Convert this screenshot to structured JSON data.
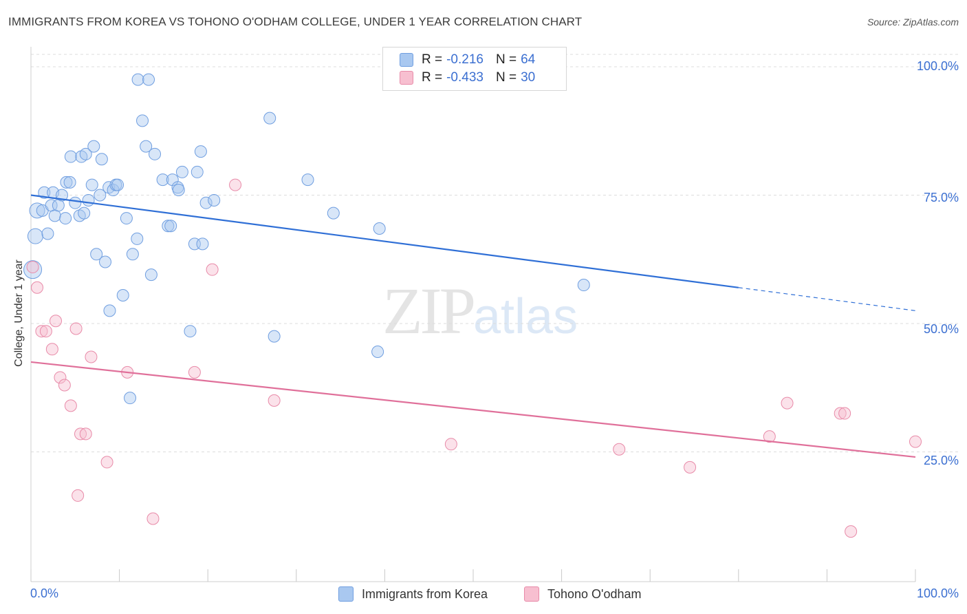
{
  "title": "IMMIGRANTS FROM KOREA VS TOHONO O'ODHAM COLLEGE, UNDER 1 YEAR CORRELATION CHART",
  "source": "Source: ZipAtlas.com",
  "watermark": {
    "part1": "ZIP",
    "part2": "atlas"
  },
  "legend": {
    "rows": [
      {
        "r_label": "R =",
        "r_value": "-0.216",
        "n_label": "N =",
        "n_value": "64",
        "color": "#a9c8f0",
        "border": "#6f9ee0"
      },
      {
        "r_label": "R =",
        "r_value": "-0.433",
        "n_label": "N =",
        "n_value": "30",
        "color": "#f7bfd0",
        "border": "#e88aa8"
      }
    ]
  },
  "bottom_legend": {
    "series1": "Immigrants from Korea",
    "series2": "Tohono O'odham"
  },
  "axes": {
    "ylabel": "College, Under 1 year",
    "yticks": [
      "100.0%",
      "75.0%",
      "50.0%",
      "25.0%"
    ],
    "xtick_left": "0.0%",
    "xtick_right": "100.0%"
  },
  "chart_data": {
    "type": "scatter",
    "title": "IMMIGRANTS FROM KOREA VS TOHONO O'ODHAM COLLEGE, UNDER 1 YEAR CORRELATION CHART",
    "xlabel": "",
    "ylabel": "College, Under 1 year",
    "xlim": [
      0,
      100
    ],
    "ylim": [
      0,
      100
    ],
    "grid": true,
    "legend_position": "top-center",
    "series": [
      {
        "name": "Immigrants from Korea",
        "color": "#a9c8f0",
        "edge": "#6f9ee0",
        "trend": {
          "x0": 0,
          "y0": 75.0,
          "x1": 80,
          "y1": 57.0,
          "dash_to": 100,
          "dash_y": 52.5,
          "color": "#2f6fd6"
        },
        "points": [
          [
            0.2,
            60.5,
            3
          ],
          [
            0.5,
            67,
            2
          ],
          [
            0.7,
            72,
            2
          ],
          [
            1.3,
            72,
            1
          ],
          [
            1.5,
            75.5,
            1
          ],
          [
            1.9,
            67.5,
            1
          ],
          [
            2.3,
            73,
            1
          ],
          [
            2.5,
            75.5,
            1
          ],
          [
            2.7,
            71,
            1
          ],
          [
            3.1,
            73,
            1
          ],
          [
            3.5,
            75,
            1
          ],
          [
            3.9,
            70.5,
            1
          ],
          [
            4.0,
            77.5,
            1
          ],
          [
            4.4,
            77.5,
            1
          ],
          [
            4.5,
            82.5,
            1
          ],
          [
            5.0,
            73.5,
            1
          ],
          [
            5.5,
            71,
            1
          ],
          [
            5.7,
            82.5,
            1
          ],
          [
            6.0,
            71.5,
            1
          ],
          [
            6.2,
            83,
            1
          ],
          [
            6.5,
            74,
            1
          ],
          [
            6.9,
            77,
            1
          ],
          [
            7.1,
            84.5,
            1
          ],
          [
            7.4,
            63.5,
            1
          ],
          [
            7.8,
            75,
            1
          ],
          [
            8.0,
            82,
            1
          ],
          [
            8.4,
            62,
            1
          ],
          [
            8.8,
            76.5,
            1
          ],
          [
            8.9,
            52.5,
            1
          ],
          [
            9.3,
            76,
            1
          ],
          [
            9.6,
            77,
            1
          ],
          [
            9.8,
            77,
            1
          ],
          [
            10.4,
            55.5,
            1
          ],
          [
            10.8,
            70.5,
            1
          ],
          [
            11.2,
            35.5,
            1
          ],
          [
            11.5,
            63.5,
            1
          ],
          [
            12.0,
            66.5,
            1
          ],
          [
            12.1,
            97.5,
            1
          ],
          [
            12.6,
            89.5,
            1
          ],
          [
            13.0,
            84.5,
            1
          ],
          [
            13.3,
            97.5,
            1
          ],
          [
            13.6,
            59.5,
            1
          ],
          [
            14.0,
            83,
            1
          ],
          [
            14.9,
            78,
            1
          ],
          [
            15.5,
            69,
            1
          ],
          [
            15.8,
            69,
            1
          ],
          [
            16.0,
            78,
            1
          ],
          [
            16.6,
            76.5,
            1
          ],
          [
            16.7,
            76,
            1
          ],
          [
            17.1,
            79.5,
            1
          ],
          [
            18.0,
            48.5,
            1
          ],
          [
            18.5,
            65.5,
            1
          ],
          [
            18.8,
            79.5,
            1
          ],
          [
            19.2,
            83.5,
            1
          ],
          [
            19.4,
            65.5,
            1
          ],
          [
            19.8,
            73.5,
            1
          ],
          [
            20.7,
            74,
            1
          ],
          [
            27.0,
            90,
            1
          ],
          [
            27.5,
            47.5,
            1
          ],
          [
            31.3,
            78,
            1
          ],
          [
            34.2,
            71.5,
            1
          ],
          [
            39.2,
            44.5,
            1
          ],
          [
            39.4,
            68.5,
            1
          ],
          [
            62.5,
            57.5,
            1
          ]
        ]
      },
      {
        "name": "Tohono O'odham",
        "color": "#f7bfd0",
        "edge": "#e88aa8",
        "trend": {
          "x0": 0,
          "y0": 42.5,
          "x1": 100,
          "y1": 24.0,
          "color": "#e0709a"
        },
        "points": [
          [
            0.2,
            61,
            1
          ],
          [
            0.7,
            57,
            1
          ],
          [
            1.2,
            48.5,
            1
          ],
          [
            1.7,
            48.5,
            1
          ],
          [
            2.4,
            45,
            1
          ],
          [
            2.8,
            50.5,
            1
          ],
          [
            3.3,
            39.5,
            1
          ],
          [
            3.8,
            38,
            1
          ],
          [
            4.5,
            34,
            1
          ],
          [
            5.1,
            49,
            1
          ],
          [
            5.3,
            16.5,
            1
          ],
          [
            5.6,
            28.5,
            1
          ],
          [
            6.2,
            28.5,
            1
          ],
          [
            6.8,
            43.5,
            1
          ],
          [
            8.6,
            23,
            1
          ],
          [
            10.9,
            40.5,
            1
          ],
          [
            13.8,
            12,
            1
          ],
          [
            18.5,
            40.5,
            1
          ],
          [
            20.5,
            60.5,
            1
          ],
          [
            23.1,
            77,
            1
          ],
          [
            27.5,
            35,
            1
          ],
          [
            47.5,
            26.5,
            1
          ],
          [
            66.5,
            25.5,
            1
          ],
          [
            74.5,
            22,
            1
          ],
          [
            83.5,
            28,
            1
          ],
          [
            85.5,
            34.5,
            1
          ],
          [
            91.5,
            32.5,
            1
          ],
          [
            92.0,
            32.5,
            1
          ],
          [
            92.7,
            9.5,
            1
          ],
          [
            100,
            27,
            1
          ]
        ]
      }
    ]
  }
}
